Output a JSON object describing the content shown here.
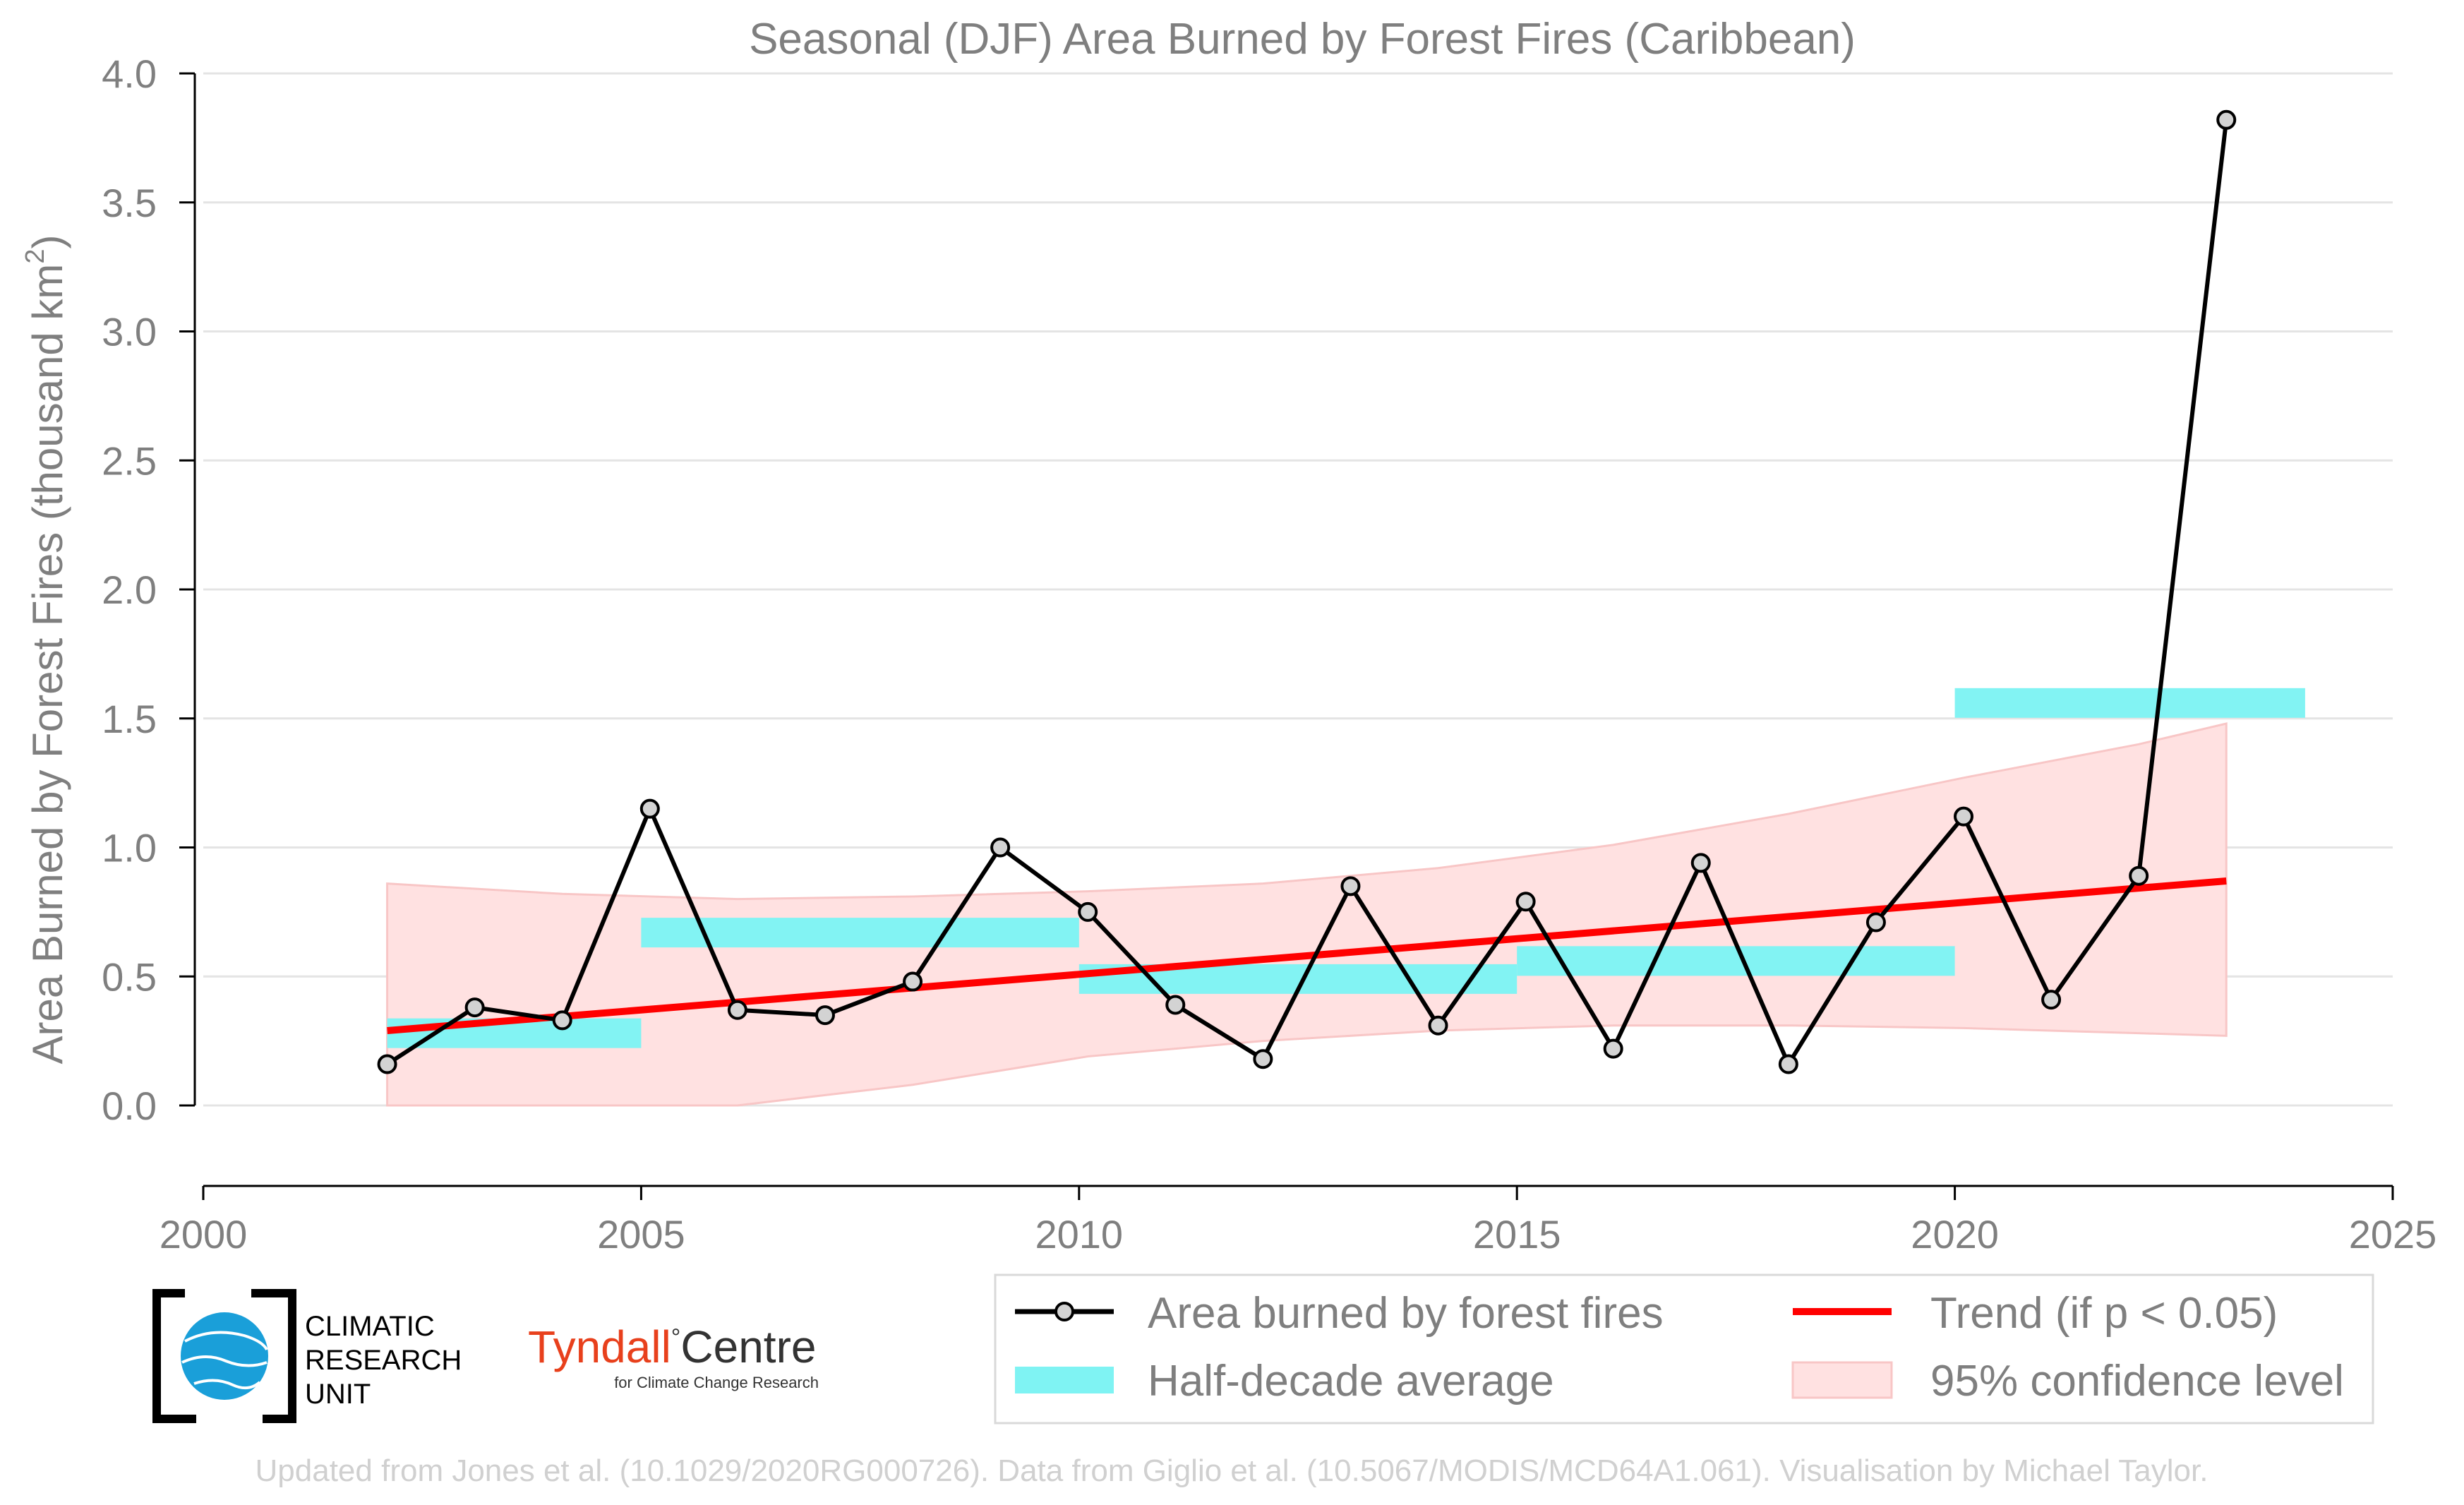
{
  "chart_data": {
    "type": "line",
    "title": "Seasonal (DJF) Area Burned by Forest Fires (Caribbean)",
    "xlabel": "",
    "ylabel_main": "Area Burned by Forest Fires (thousand km",
    "ylabel_sup": "2",
    "ylabel_close": ")",
    "xlim": [
      2000,
      2025
    ],
    "ylim": [
      -0.3,
      4.0
    ],
    "x_ticks": [
      2000,
      2005,
      2010,
      2015,
      2020,
      2025
    ],
    "x_tick_labels": [
      "2000",
      "2005",
      "2010",
      "2015",
      "2020",
      "2025"
    ],
    "y_ticks": [
      0.0,
      0.5,
      1.0,
      1.5,
      2.0,
      2.5,
      3.0,
      3.5,
      4.0
    ],
    "y_tick_labels": [
      "0.0",
      "0.5",
      "1.0",
      "1.5",
      "2.0",
      "2.5",
      "3.0",
      "3.5",
      "4.0"
    ],
    "grid": "horizontal",
    "legend_position": "bottom-right",
    "colors": {
      "line": "#000000",
      "marker_fill": "#d3d3d3",
      "trend": "#ff0000",
      "half_decade": "#7ff3f3",
      "confidence": "#ffe1e1",
      "confidence_edge": "#f8c6c6"
    },
    "series": [
      {
        "name": "Area burned by forest fires",
        "x": [
          2002.1,
          2003.1,
          2004.1,
          2005.1,
          2006.1,
          2007.1,
          2008.1,
          2009.1,
          2010.1,
          2011.1,
          2012.1,
          2013.1,
          2014.1,
          2015.1,
          2016.1,
          2017.1,
          2018.1,
          2019.1,
          2020.1,
          2021.1,
          2022.1,
          2023.1
        ],
        "values": [
          0.16,
          0.38,
          0.33,
          1.15,
          0.37,
          0.35,
          0.48,
          1.0,
          0.75,
          0.39,
          0.18,
          0.85,
          0.31,
          0.79,
          0.22,
          0.94,
          0.16,
          0.71,
          1.12,
          0.41,
          0.89,
          3.82
        ]
      },
      {
        "name": "Half-decade average",
        "segments": [
          {
            "x_start": 2002.1,
            "x_end": 2005.0,
            "value": 0.28
          },
          {
            "x_start": 2005.0,
            "x_end": 2010.0,
            "value": 0.67
          },
          {
            "x_start": 2010.0,
            "x_end": 2015.0,
            "value": 0.49
          },
          {
            "x_start": 2015.0,
            "x_end": 2020.0,
            "value": 0.56
          },
          {
            "x_start": 2020.0,
            "x_end": 2024.0,
            "value": 1.56
          }
        ]
      },
      {
        "name": "Trend (if p < 0.05)",
        "x": [
          2002.1,
          2023.1
        ],
        "values": [
          0.29,
          0.87
        ]
      },
      {
        "name": "95% confidence level",
        "x": [
          2002.1,
          2004.1,
          2006.1,
          2008.1,
          2010.1,
          2012.1,
          2014.1,
          2016.1,
          2018.1,
          2020.1,
          2022.1,
          2023.1
        ],
        "lower": [
          0.0,
          0.0,
          0.0,
          0.08,
          0.19,
          0.25,
          0.29,
          0.31,
          0.31,
          0.3,
          0.28,
          0.27
        ],
        "upper": [
          0.86,
          0.82,
          0.8,
          0.81,
          0.83,
          0.86,
          0.92,
          1.01,
          1.13,
          1.27,
          1.4,
          1.48
        ]
      }
    ]
  },
  "legend": {
    "items": [
      {
        "label": "Area burned by forest fires",
        "kind": "line-marker"
      },
      {
        "label": "Trend (if p < 0.05)",
        "kind": "red-line"
      },
      {
        "label": "Half-decade average",
        "kind": "cyan-bar"
      },
      {
        "label": "95% confidence level",
        "kind": "pink-band"
      }
    ]
  },
  "logos": {
    "cru_lines": [
      "CLIMATIC",
      "RESEARCH",
      "UNIT"
    ],
    "tyndall_name_a": "Tyndall",
    "tyndall_degree": "°",
    "tyndall_name_b": "Centre",
    "tyndall_sub": "for Climate Change Research",
    "tyndall_color": "#e8401c"
  },
  "credit": "Updated from Jones et al. (10.1029/2020RG000726). Data from Giglio et al. (10.5067/MODIS/MCD64A1.061). Visualisation by Michael Taylor."
}
